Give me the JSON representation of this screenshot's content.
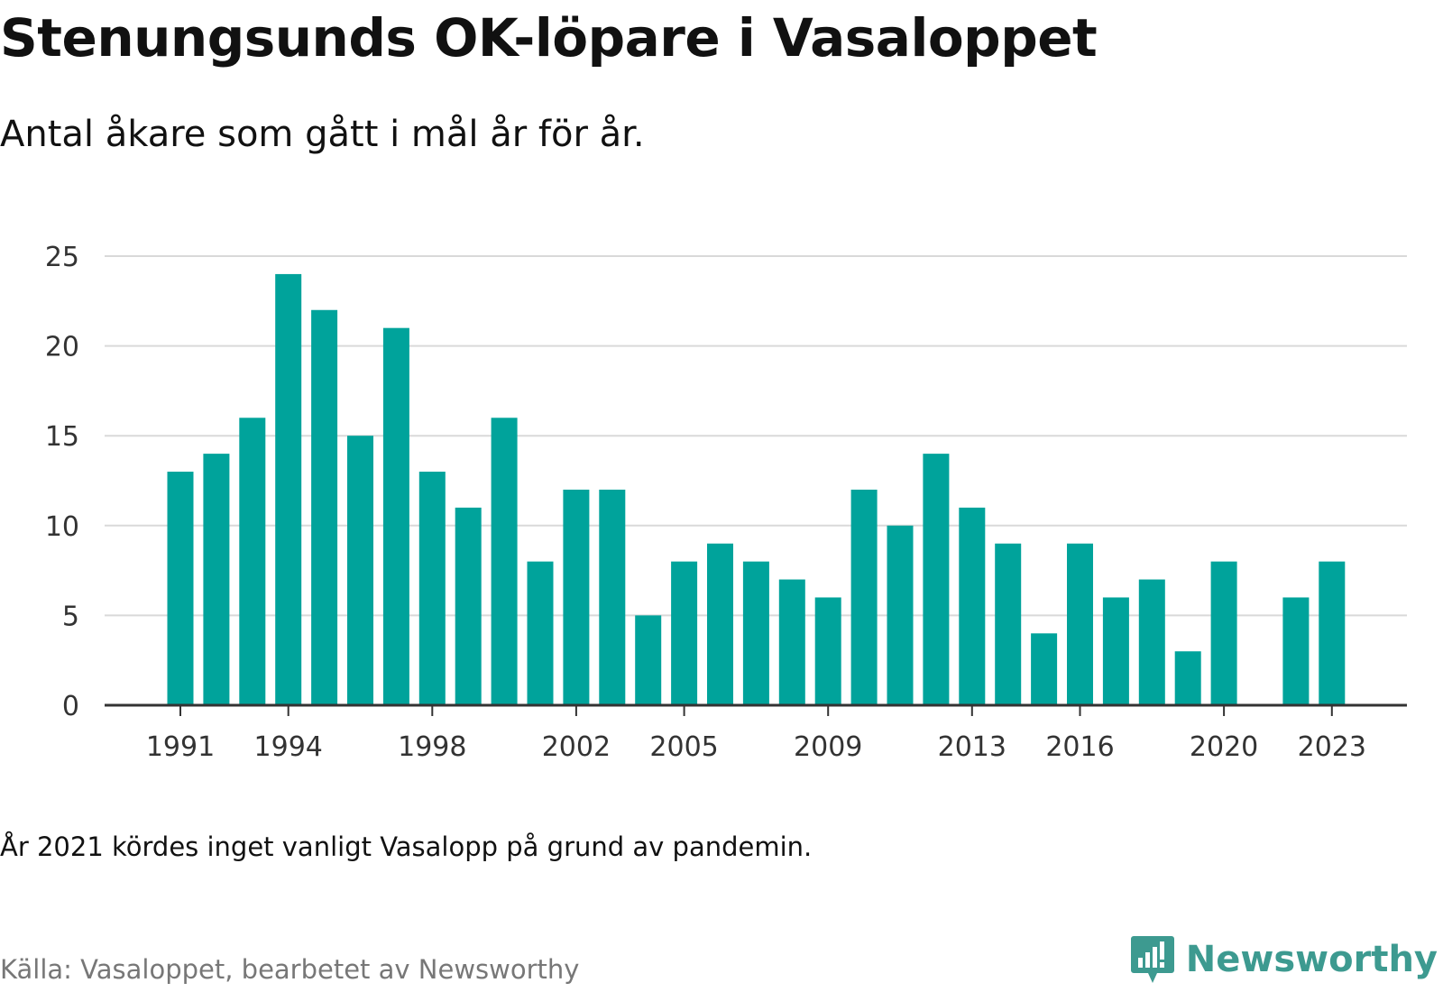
{
  "title": "Stenungsunds OK-löpare i Vasaloppet",
  "subtitle": "Antal åkare som gått i mål år för år.",
  "note": "År 2021 kördes inget vanligt Vasalopp på grund av pandemin.",
  "source": "Källa: Vasaloppet, bearbetet av Newsworthy",
  "brand": {
    "name": "Newsworthy",
    "icon": "newsworthy-logo-icon",
    "color": "#3d9a90"
  },
  "chart_data": {
    "type": "bar",
    "title": "Stenungsunds OK-löpare i Vasaloppet",
    "subtitle": "Antal åkare som gått i mål år för år.",
    "xlabel": "",
    "ylabel": "",
    "bar_color": "#00a39b",
    "grid": true,
    "legend": "none",
    "ylim": [
      0,
      25
    ],
    "yticks": [
      0,
      5,
      10,
      15,
      20,
      25
    ],
    "xticks": [
      1991,
      1994,
      1998,
      2002,
      2005,
      2009,
      2013,
      2016,
      2020,
      2023
    ],
    "x": [
      1991,
      1992,
      1993,
      1994,
      1995,
      1996,
      1997,
      1998,
      1999,
      2000,
      2001,
      2002,
      2003,
      2004,
      2005,
      2006,
      2007,
      2008,
      2009,
      2010,
      2011,
      2012,
      2013,
      2014,
      2015,
      2016,
      2017,
      2018,
      2019,
      2020,
      2021,
      2022,
      2023
    ],
    "values": [
      13,
      14,
      16,
      24,
      22,
      15,
      21,
      13,
      11,
      16,
      8,
      12,
      12,
      5,
      8,
      9,
      8,
      7,
      6,
      12,
      10,
      14,
      11,
      9,
      4,
      9,
      6,
      7,
      3,
      8,
      null,
      6,
      8
    ]
  }
}
